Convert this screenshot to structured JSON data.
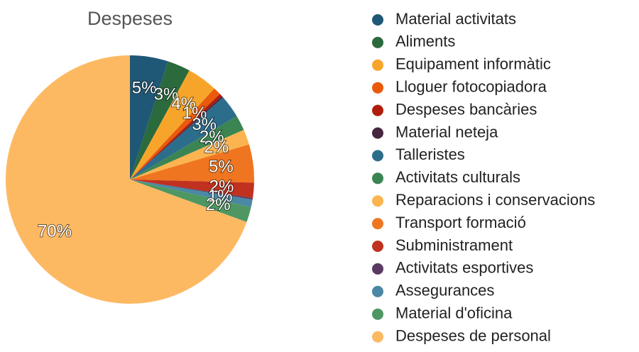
{
  "chart_data": {
    "type": "pie",
    "title": "Despeses",
    "categories": [
      "Material activitats",
      "Aliments",
      "Equipament informàtic",
      "Lloguer fotocopiadora",
      "Despeses bancàries",
      "Material neteja",
      "Talleristes",
      "Activitats culturals",
      "Reparacions i conservacions",
      "Transport formació",
      "Subministrament",
      "Activitats esportives",
      "Assegurances",
      "Material d'oficina",
      "Despeses de personal"
    ],
    "values": [
      5,
      3,
      4,
      1,
      0.4,
      0.2,
      3,
      2,
      2,
      5,
      2,
      0.2,
      1,
      2,
      70
    ],
    "value_labels": [
      "5%",
      "3%",
      "4%",
      "1%",
      null,
      null,
      "3%",
      "2%",
      "2%",
      "5%",
      "2%",
      null,
      "1%",
      "2%",
      "70%"
    ],
    "colors": [
      "#1f5876",
      "#2b6a3d",
      "#f7a52a",
      "#e95a0c",
      "#b11d0c",
      "#46263f",
      "#2d6d8c",
      "#3b8552",
      "#fcb450",
      "#f07520",
      "#c0311f",
      "#5a3a62",
      "#4a88a5",
      "#4e9763",
      "#fdb962"
    ]
  }
}
